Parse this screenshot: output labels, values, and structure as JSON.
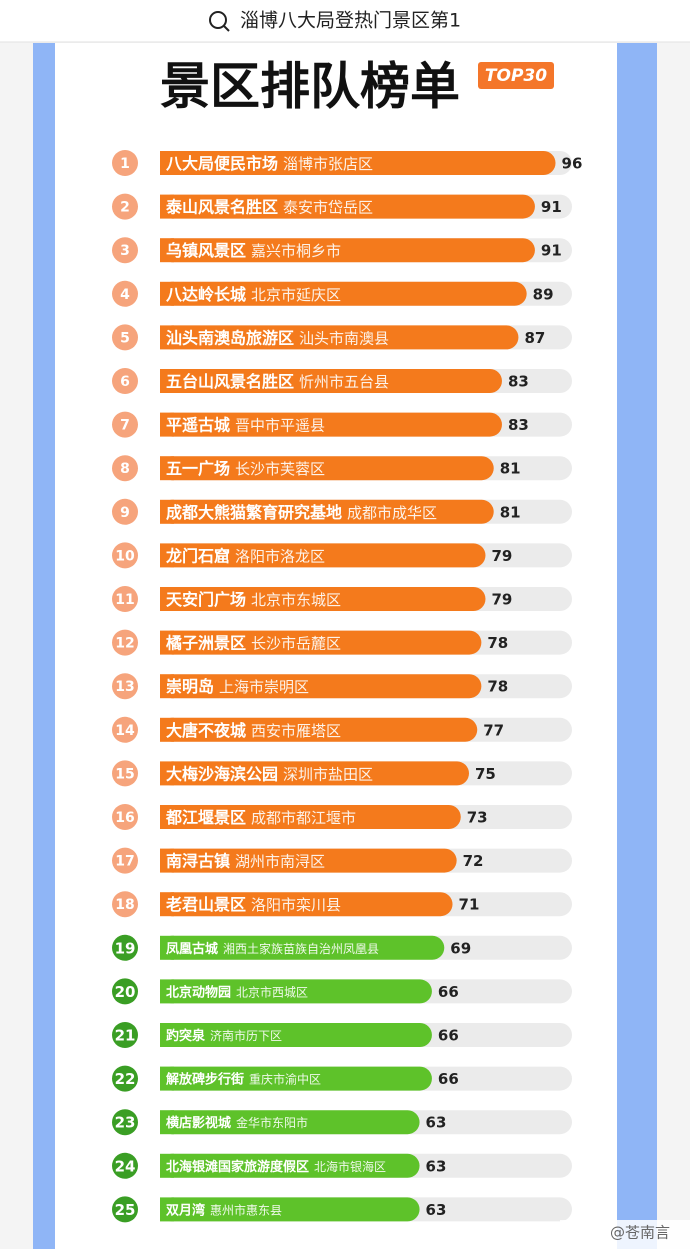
{
  "header": {
    "search_text": "淄博八大局登热门景区第1"
  },
  "chart_data": {
    "type": "bar",
    "orientation": "horizontal",
    "title": "景区排队榜单",
    "badge": "TOP30",
    "ranks": [
      1,
      2,
      3,
      4,
      5,
      6,
      7,
      8,
      9,
      10,
      11,
      12,
      13,
      14,
      15,
      16,
      17,
      18,
      19,
      20,
      21,
      22,
      23,
      24,
      25
    ],
    "categories": [
      "八大局便民市场",
      "泰山风景名胜区",
      "乌镇风景区",
      "八达岭长城",
      "汕头南澳岛旅游区",
      "五台山风景名胜区",
      "平遥古城",
      "五一广场",
      "成都大熊猫繁育研究基地",
      "龙门石窟",
      "天安门广场",
      "橘子洲景区",
      "崇明岛",
      "大唐不夜城",
      "大梅沙海滨公园",
      "都江堰景区",
      "南浔古镇",
      "老君山景区",
      "凤凰古城",
      "北京动物园",
      "趵突泉",
      "解放碑步行街",
      "横店影视城",
      "北海银滩国家旅游度假区",
      "双月湾"
    ],
    "locations": [
      "淄博市张店区",
      "泰安市岱岳区",
      "嘉兴市桐乡市",
      "北京市延庆区",
      "汕头市南澳县",
      "忻州市五台县",
      "晋中市平遥县",
      "长沙市芙蓉区",
      "成都市成华区",
      "洛阳市洛龙区",
      "北京市东城区",
      "长沙市岳麓区",
      "上海市崇明区",
      "西安市雁塔区",
      "深圳市盐田区",
      "成都市都江堰市",
      "湖州市南浔区",
      "洛阳市栾川县",
      "湘西土家族苗族自治州凤凰县",
      "北京市西城区",
      "济南市历下区",
      "重庆市渝中区",
      "金华市东阳市",
      "北海市银海区",
      "惠州市惠东县"
    ],
    "values": [
      96,
      91,
      91,
      89,
      87,
      83,
      83,
      81,
      81,
      79,
      79,
      78,
      78,
      77,
      75,
      73,
      72,
      71,
      69,
      66,
      66,
      66,
      63,
      63,
      63
    ],
    "colors": [
      "#f47a1c",
      "#f47a1c",
      "#f47a1c",
      "#f47a1c",
      "#f47a1c",
      "#f47a1c",
      "#f47a1c",
      "#f47a1c",
      "#f47a1c",
      "#f47a1c",
      "#f47a1c",
      "#f47a1c",
      "#f47a1c",
      "#f47a1c",
      "#f47a1c",
      "#f47a1c",
      "#f47a1c",
      "#f47a1c",
      "#5ec22a",
      "#5ec22a",
      "#5ec22a",
      "#5ec22a",
      "#5ec22a",
      "#5ec22a",
      "#5ec22a"
    ],
    "rank_colors": [
      "#f6a47c",
      "#f6a47c",
      "#f6a47c",
      "#f6a47c",
      "#f6a47c",
      "#f6a47c",
      "#f6a47c",
      "#f6a47c",
      "#f6a47c",
      "#f6a47c",
      "#f6a47c",
      "#f6a47c",
      "#f6a47c",
      "#f6a47c",
      "#f6a47c",
      "#f6a47c",
      "#f6a47c",
      "#f6a47c",
      "#3a9e24",
      "#3a9e24",
      "#3a9e24",
      "#3a9e24",
      "#3a9e24",
      "#3a9e24",
      "#3a9e24"
    ],
    "xlim": [
      0,
      100
    ]
  },
  "watermark": "@苍南言"
}
